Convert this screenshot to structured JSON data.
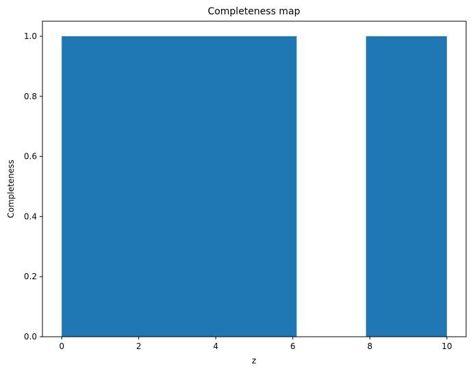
{
  "chart_data": {
    "type": "bar",
    "title": "Completeness map",
    "xlabel": "z",
    "ylabel": "Completeness",
    "xlim": [
      -0.5,
      10.5
    ],
    "ylim": [
      0,
      1.05
    ],
    "x_ticks": [
      0,
      2,
      4,
      6,
      8,
      10
    ],
    "x_tick_labels": [
      "0",
      "2",
      "4",
      "6",
      "8",
      "10"
    ],
    "y_ticks": [
      0,
      0.2,
      0.4,
      0.6,
      0.8,
      1.0
    ],
    "y_tick_labels": [
      "0.0",
      "0.2",
      "0.4",
      "0.6",
      "0.8",
      "1.0"
    ],
    "bars": [
      {
        "x_start": 0,
        "x_end": 6.1,
        "value": 1.0
      },
      {
        "x_start": 7.9,
        "x_end": 10,
        "value": 1.0
      }
    ],
    "grid": false,
    "legend": "none",
    "bar_color": "#1f77b4"
  }
}
